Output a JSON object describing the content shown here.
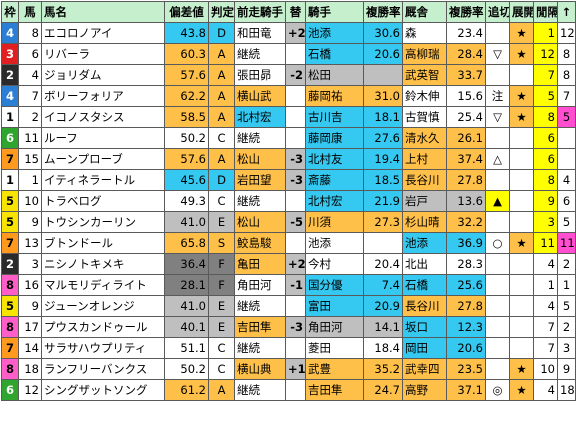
{
  "headers": [
    "枠",
    "馬",
    "馬名",
    "偏差値",
    "判定",
    "前走騎手",
    "替",
    "騎手",
    "複勝率",
    "厩舎",
    "複勝率",
    "追切",
    "展開",
    "閒隔",
    "↑"
  ],
  "rows": [
    {
      "waku": "4",
      "num": "8",
      "name": "エコロノアイ",
      "dev": "43.8",
      "grade": "D",
      "prev": "和田竜",
      "swap": "+2",
      "jockey": "池添",
      "jrate": "30.6",
      "stable": "森",
      "srate": "23.4",
      "train": "",
      "tenkai": "★",
      "interval": "1",
      "idx": "12"
    },
    {
      "waku": "3",
      "num": "6",
      "name": "リバーラ",
      "dev": "60.3",
      "grade": "A",
      "prev": "継続",
      "swap": "",
      "jockey": "石橋",
      "jrate": "20.6",
      "stable": "高柳瑞",
      "srate": "28.4",
      "train": "▽",
      "tenkai": "★",
      "interval": "12",
      "idx": "8"
    },
    {
      "waku": "2",
      "num": "4",
      "name": "ジョリダム",
      "dev": "57.6",
      "grade": "A",
      "prev": "張田昴",
      "swap": "-2",
      "jockey": "松田",
      "jrate": "",
      "stable": "武英智",
      "srate": "33.7",
      "train": "",
      "tenkai": "",
      "interval": "7",
      "idx": "8"
    },
    {
      "waku": "4",
      "num": "7",
      "name": "ボリーフォリア",
      "dev": "62.2",
      "grade": "A",
      "prev": "横山武",
      "swap": "",
      "jockey": "藤岡祐",
      "jrate": "31.0",
      "stable": "鈴木伸",
      "srate": "15.6",
      "train": "注",
      "tenkai": "★",
      "interval": "5",
      "idx": "7"
    },
    {
      "waku": "1",
      "num": "2",
      "name": "イコノスタシス",
      "dev": "58.5",
      "grade": "A",
      "prev": "北村宏",
      "swap": "",
      "jockey": "古川吉",
      "jrate": "18.1",
      "stable": "古賀慎",
      "srate": "25.4",
      "train": "▽",
      "tenkai": "★",
      "interval": "8",
      "idx": "5"
    },
    {
      "waku": "6",
      "num": "11",
      "name": "ルーフ",
      "dev": "50.2",
      "grade": "C",
      "prev": "継続",
      "swap": "",
      "jockey": "藤岡康",
      "jrate": "27.6",
      "stable": "清水久",
      "srate": "26.1",
      "train": "",
      "tenkai": "",
      "interval": "6",
      "idx": ""
    },
    {
      "waku": "7",
      "num": "15",
      "name": "ムーンプローブ",
      "dev": "57.6",
      "grade": "A",
      "prev": "松山",
      "swap": "-3",
      "jockey": "北村友",
      "jrate": "19.4",
      "stable": "上村",
      "srate": "37.4",
      "train": "△",
      "tenkai": "",
      "interval": "6",
      "idx": ""
    },
    {
      "waku": "1",
      "num": "1",
      "name": "イティネラートル",
      "dev": "45.6",
      "grade": "D",
      "prev": "岩田望",
      "swap": "-3",
      "jockey": "斎藤",
      "jrate": "18.5",
      "stable": "長谷川",
      "srate": "27.8",
      "train": "",
      "tenkai": "",
      "interval": "8",
      "idx": "4"
    },
    {
      "waku": "5",
      "num": "10",
      "name": "トラベログ",
      "dev": "49.3",
      "grade": "C",
      "prev": "継続",
      "swap": "",
      "jockey": "北村宏",
      "jrate": "21.9",
      "stable": "岩戸",
      "srate": "13.6",
      "train": "▲",
      "tenkai": "",
      "interval": "9",
      "idx": "6"
    },
    {
      "waku": "5",
      "num": "9",
      "name": "トウシンカーリン",
      "dev": "41.0",
      "grade": "E",
      "prev": "松山",
      "swap": "-5",
      "jockey": "川須",
      "jrate": "27.3",
      "stable": "杉山晴",
      "srate": "32.2",
      "train": "",
      "tenkai": "",
      "interval": "3",
      "idx": "5"
    },
    {
      "waku": "7",
      "num": "13",
      "name": "ブトンドール",
      "dev": "65.8",
      "grade": "S",
      "prev": "鮫島駿",
      "swap": "",
      "jockey": "池添",
      "jrate": "",
      "stable": "池添",
      "srate": "36.9",
      "train": "○",
      "tenkai": "★",
      "interval": "11",
      "idx": "11"
    },
    {
      "waku": "2",
      "num": "3",
      "name": "ニシノトキメキ",
      "dev": "36.4",
      "grade": "F",
      "prev": "亀田",
      "swap": "+2",
      "jockey": "今村",
      "jrate": "20.4",
      "stable": "北出",
      "srate": "28.3",
      "train": "",
      "tenkai": "",
      "interval": "4",
      "idx": "2"
    },
    {
      "waku": "8",
      "num": "16",
      "name": "マルモリディライト",
      "dev": "28.1",
      "grade": "F",
      "prev": "角田河",
      "swap": "-1",
      "jockey": "国分優",
      "jrate": "7.4",
      "stable": "石橋",
      "srate": "25.6",
      "train": "",
      "tenkai": "",
      "interval": "1",
      "idx": "1"
    },
    {
      "waku": "5",
      "num": "9",
      "name": "ジューンオレンジ",
      "dev": "41.0",
      "grade": "E",
      "prev": "継続",
      "swap": "",
      "jockey": "富田",
      "jrate": "20.9",
      "stable": "長谷川",
      "srate": "27.8",
      "train": "",
      "tenkai": "",
      "interval": "4",
      "idx": "5"
    },
    {
      "waku": "8",
      "num": "17",
      "name": "プウスカンドゥール",
      "dev": "40.1",
      "grade": "E",
      "prev": "吉田隼",
      "swap": "-3",
      "jockey": "角田河",
      "jrate": "14.1",
      "stable": "坂口",
      "srate": "12.3",
      "train": "",
      "tenkai": "",
      "interval": "7",
      "idx": "2"
    },
    {
      "waku": "7",
      "num": "14",
      "name": "サラサハウプリティ",
      "dev": "51.1",
      "grade": "C",
      "prev": "継続",
      "swap": "",
      "jockey": "菱田",
      "jrate": "18.4",
      "stable": "岡田",
      "srate": "20.6",
      "train": "",
      "tenkai": "",
      "interval": "7",
      "idx": "3"
    },
    {
      "waku": "8",
      "num": "18",
      "name": "ランフリーバンクス",
      "dev": "50.2",
      "grade": "C",
      "prev": "横山典",
      "swap": "+1",
      "jockey": "武豊",
      "jrate": "35.2",
      "stable": "武幸四",
      "srate": "23.5",
      "train": "",
      "tenkai": "★",
      "interval": "10",
      "idx": "9"
    },
    {
      "waku": "6",
      "num": "12",
      "name": "シングザットソング",
      "dev": "61.2",
      "grade": "A",
      "prev": "継続",
      "swap": "",
      "jockey": "吉田隼",
      "jrate": "24.7",
      "stable": "高野",
      "srate": "37.1",
      "train": "◎",
      "tenkai": "★",
      "interval": "4",
      "idx": "18"
    }
  ]
}
